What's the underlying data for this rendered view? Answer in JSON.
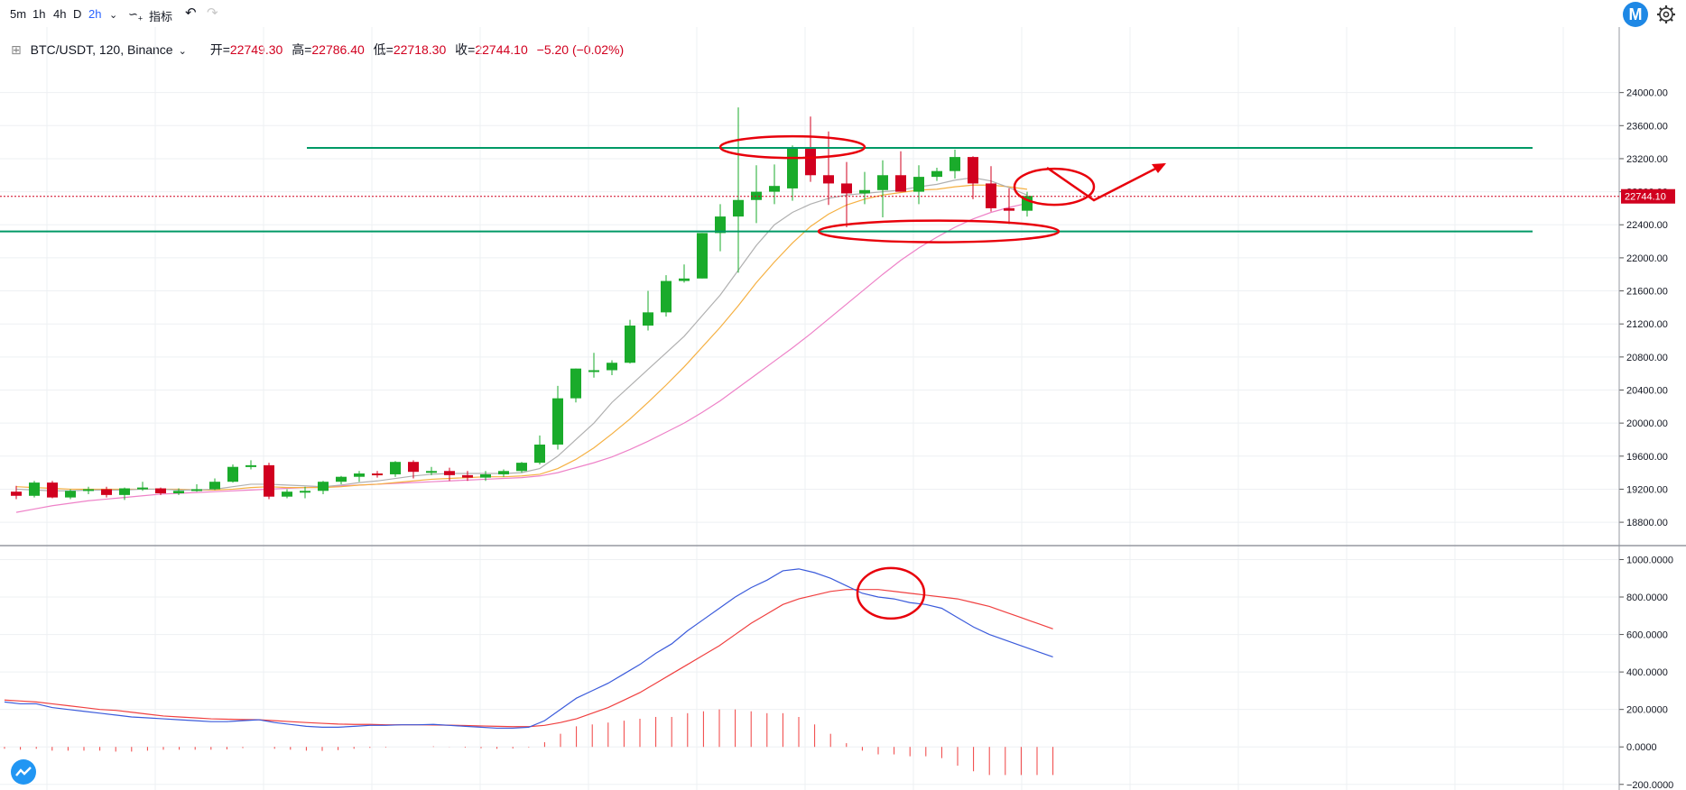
{
  "toolbar": {
    "intervals": [
      "5m",
      "1h",
      "4h",
      "D",
      "2h"
    ],
    "active_interval": "2h",
    "indicators_label": "指标"
  },
  "legend": {
    "symbol": "BTC/USDT, 120, Binance",
    "open_label": "开=",
    "open": "22749.30",
    "high_label": "高=",
    "high": "22786.40",
    "low_label": "低=",
    "low": "22718.30",
    "close_label": "收=",
    "close": "22744.10",
    "change": "−5.20 (−0.02%)"
  },
  "colors": {
    "up": "#1aab2b",
    "down": "#d1001f",
    "teal_line": "#009966",
    "annotation": "#e8000b",
    "macd": "#3b5bdb",
    "signal": "#f04040",
    "pink_ma": "#ee82c8",
    "orange_ma": "#f5b042"
  },
  "chart_data": [
    {
      "type": "candlestick",
      "ylim": [
        18550,
        24400
      ],
      "y_ticks": [
        18800,
        19200,
        19600,
        20000,
        20400,
        20800,
        21200,
        21600,
        22000,
        22400,
        22800,
        23200,
        23600,
        24000
      ],
      "y_tick_labels": [
        "18800.00",
        "19200.00",
        "19600.00",
        "20000.00",
        "20400.00",
        "20800.00",
        "21200.00",
        "21600.00",
        "22000.00",
        "22400.00",
        "22800.00",
        "23200.00",
        "23600.00",
        "24000.00"
      ],
      "last_price": 22744.1,
      "last_price_label": "22744.10",
      "horizontal_lines": [
        23330,
        22320
      ],
      "candles": [
        [
          19170,
          19240,
          19080,
          19120
        ],
        [
          19120,
          19300,
          19100,
          19280
        ],
        [
          19280,
          19300,
          19090,
          19100
        ],
        [
          19100,
          19200,
          19080,
          19180
        ],
        [
          19180,
          19230,
          19140,
          19200
        ],
        [
          19200,
          19230,
          19100,
          19130
        ],
        [
          19130,
          19220,
          19070,
          19210
        ],
        [
          19210,
          19290,
          19180,
          19220
        ],
        [
          19210,
          19220,
          19130,
          19150
        ],
        [
          19150,
          19210,
          19130,
          19180
        ],
        [
          19180,
          19260,
          19170,
          19200
        ],
        [
          19200,
          19330,
          19190,
          19290
        ],
        [
          19290,
          19500,
          19280,
          19470
        ],
        [
          19470,
          19550,
          19440,
          19490
        ],
        [
          19490,
          19520,
          19080,
          19110
        ],
        [
          19110,
          19200,
          19090,
          19170
        ],
        [
          19170,
          19230,
          19090,
          19180
        ],
        [
          19180,
          19300,
          19140,
          19290
        ],
        [
          19290,
          19360,
          19260,
          19350
        ],
        [
          19350,
          19420,
          19290,
          19390
        ],
        [
          19390,
          19420,
          19340,
          19380
        ],
        [
          19380,
          19540,
          19350,
          19530
        ],
        [
          19530,
          19550,
          19330,
          19410
        ],
        [
          19410,
          19470,
          19370,
          19420
        ],
        [
          19420,
          19460,
          19300,
          19370
        ],
        [
          19370,
          19420,
          19300,
          19340
        ],
        [
          19340,
          19420,
          19300,
          19380
        ],
        [
          19380,
          19440,
          19350,
          19420
        ],
        [
          19420,
          19530,
          19400,
          19520
        ],
        [
          19520,
          19850,
          19500,
          19740
        ],
        [
          19740,
          20450,
          19680,
          20300
        ],
        [
          20300,
          20660,
          20250,
          20660
        ],
        [
          20640,
          20850,
          20550,
          20640
        ],
        [
          20640,
          20760,
          20580,
          20730
        ],
        [
          20730,
          21250,
          20720,
          21180
        ],
        [
          21180,
          21600,
          21120,
          21340
        ],
        [
          21340,
          21790,
          21290,
          21720
        ],
        [
          21720,
          21920,
          21700,
          21750
        ],
        [
          21750,
          22300,
          21750,
          22300
        ],
        [
          22300,
          22650,
          22080,
          22500
        ],
        [
          22500,
          23820,
          21820,
          22700
        ],
        [
          22700,
          23120,
          22420,
          22800
        ],
        [
          22800,
          23130,
          22650,
          22870
        ],
        [
          22840,
          23360,
          22690,
          23340
        ],
        [
          23340,
          23710,
          22920,
          23000
        ],
        [
          23000,
          23530,
          22640,
          22900
        ],
        [
          22900,
          23160,
          22370,
          22780
        ],
        [
          22780,
          23040,
          22650,
          22820
        ],
        [
          22820,
          23180,
          22490,
          23000
        ],
        [
          23000,
          23290,
          22800,
          22800
        ],
        [
          22800,
          23120,
          22650,
          22980
        ],
        [
          22980,
          23090,
          22930,
          23050
        ],
        [
          23050,
          23310,
          22960,
          23220
        ],
        [
          23220,
          23230,
          22710,
          22900
        ],
        [
          22900,
          23110,
          22560,
          22600
        ],
        [
          22600,
          22840,
          22410,
          22570
        ],
        [
          22570,
          22800,
          22500,
          22749
        ]
      ],
      "ma_gray": [
        19200,
        19190,
        19180,
        19180,
        19190,
        19190,
        19190,
        19200,
        19200,
        19190,
        19190,
        19200,
        19230,
        19260,
        19260,
        19250,
        19240,
        19230,
        19250,
        19280,
        19300,
        19330,
        19360,
        19380,
        19390,
        19390,
        19390,
        19390,
        19400,
        19450,
        19600,
        19800,
        20000,
        20250,
        20450,
        20650,
        20850,
        21050,
        21300,
        21550,
        21850,
        22150,
        22400,
        22550,
        22650,
        22720,
        22760,
        22780,
        22800,
        22820,
        22860,
        22890,
        22940,
        22970,
        22930,
        22850,
        22760
      ],
      "ma_orange": [
        19230,
        19220,
        19210,
        19200,
        19200,
        19200,
        19200,
        19200,
        19200,
        19200,
        19190,
        19190,
        19200,
        19220,
        19230,
        19220,
        19220,
        19220,
        19230,
        19250,
        19260,
        19280,
        19300,
        19320,
        19330,
        19340,
        19350,
        19350,
        19360,
        19380,
        19450,
        19560,
        19700,
        19870,
        20050,
        20250,
        20460,
        20680,
        20920,
        21160,
        21420,
        21700,
        21950,
        22180,
        22380,
        22530,
        22640,
        22710,
        22760,
        22790,
        22820,
        22830,
        22860,
        22880,
        22880,
        22860,
        22830
      ],
      "ma_pink": [
        18920,
        18960,
        19000,
        19030,
        19060,
        19080,
        19100,
        19120,
        19140,
        19150,
        19160,
        19170,
        19180,
        19190,
        19200,
        19210,
        19220,
        19230,
        19240,
        19250,
        19260,
        19270,
        19280,
        19290,
        19300,
        19310,
        19320,
        19330,
        19340,
        19360,
        19400,
        19460,
        19520,
        19590,
        19680,
        19780,
        19890,
        20000,
        20130,
        20270,
        20430,
        20590,
        20750,
        20910,
        21080,
        21260,
        21440,
        21620,
        21800,
        21970,
        22120,
        22250,
        22370,
        22470,
        22550,
        22610,
        22660
      ]
    },
    {
      "type": "macd",
      "ylim": [
        -230,
        1060
      ],
      "y_ticks": [
        -200,
        0,
        200,
        400,
        600,
        800,
        1000
      ],
      "y_tick_labels": [
        "−200.0000",
        "0.0000",
        "200.0000",
        "400.0000",
        "600.0000",
        "800.0000",
        "1000.0000"
      ],
      "macd": [
        240,
        230,
        230,
        210,
        200,
        190,
        180,
        170,
        160,
        155,
        150,
        145,
        140,
        135,
        135,
        140,
        145,
        130,
        120,
        110,
        105,
        105,
        110,
        115,
        115,
        118,
        118,
        120,
        115,
        110,
        105,
        100,
        100,
        105,
        140,
        200,
        260,
        300,
        340,
        390,
        440,
        500,
        550,
        620,
        680,
        740,
        800,
        850,
        890,
        940,
        950,
        930,
        900,
        860,
        820,
        800,
        790,
        770,
        760,
        740,
        690,
        640,
        600,
        570,
        540,
        510,
        480
      ],
      "signal": [
        250,
        245,
        240,
        230,
        220,
        210,
        200,
        195,
        185,
        175,
        165,
        160,
        155,
        150,
        148,
        146,
        145,
        140,
        135,
        130,
        126,
        122,
        120,
        120,
        118,
        118,
        118,
        117,
        116,
        114,
        112,
        110,
        108,
        108,
        115,
        130,
        150,
        180,
        210,
        250,
        290,
        340,
        390,
        440,
        490,
        540,
        600,
        660,
        710,
        760,
        790,
        810,
        830,
        840,
        840,
        840,
        830,
        820,
        810,
        800,
        790,
        770,
        750,
        720,
        690,
        660,
        630
      ],
      "histogram": [
        -10,
        -15,
        -10,
        -20,
        -20,
        -20,
        -20,
        -25,
        -25,
        -20,
        -15,
        -15,
        -15,
        -15,
        -13,
        -6,
        0,
        -10,
        -15,
        -20,
        -21,
        -17,
        -10,
        -5,
        -3,
        0,
        0,
        3,
        -1,
        -4,
        -7,
        -10,
        -8,
        -3,
        25,
        70,
        110,
        120,
        130,
        140,
        150,
        160,
        160,
        180,
        190,
        200,
        200,
        190,
        180,
        180,
        160,
        120,
        70,
        20,
        -20,
        -40,
        -40,
        -50,
        -50,
        -60,
        -100,
        -130,
        -150,
        -150,
        -150,
        -150,
        -150
      ]
    }
  ]
}
